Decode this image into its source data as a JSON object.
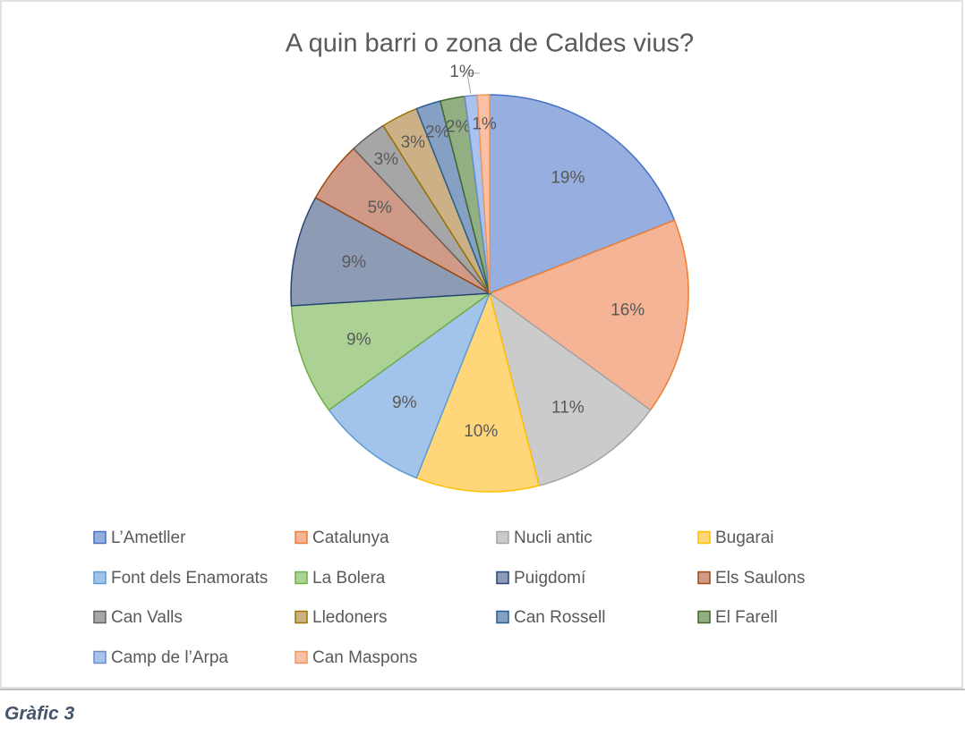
{
  "chart_data": {
    "type": "pie",
    "title": "A quin barri o zona de Caldes vius?",
    "categories": [
      "L’Ametller",
      "Catalunya",
      "Nucli antic",
      "Bugarai",
      "Font dels Enamorats",
      "La Bolera",
      "Puigdomí",
      "Els Saulons",
      "Can Valls",
      "Lledoners",
      "Can Rossell",
      "El Farell",
      "Camp de l’Arpa",
      "Can Maspons"
    ],
    "values": [
      19,
      16,
      11,
      10,
      9,
      9,
      9,
      5,
      3,
      3,
      2,
      2,
      1,
      1
    ],
    "value_labels": [
      "19%",
      "16%",
      "11%",
      "10%",
      "9%",
      "9%",
      "9%",
      "5%",
      "3%",
      "3%",
      "2%",
      "2%",
      "1%",
      "1%"
    ],
    "colors": [
      "#97aee0",
      "#f5b496",
      "#cbcbcb",
      "#ffd77a",
      "#a3c4ea",
      "#abd294",
      "#8e9bb4",
      "#cf9a87",
      "#a6a6a6",
      "#ccb187",
      "#86a0c4",
      "#92ae83",
      "#a9c2ee",
      "#f8c1a6"
    ],
    "edge_colors": [
      "#4472c4",
      "#ed7d31",
      "#a5a5a5",
      "#ffc000",
      "#5b9bd5",
      "#70ad47",
      "#264478",
      "#9e480e",
      "#636363",
      "#997300",
      "#255e91",
      "#43682b",
      "#698ed0",
      "#f1975a"
    ],
    "legend": "bottom"
  },
  "caption": "Gràfic 3"
}
